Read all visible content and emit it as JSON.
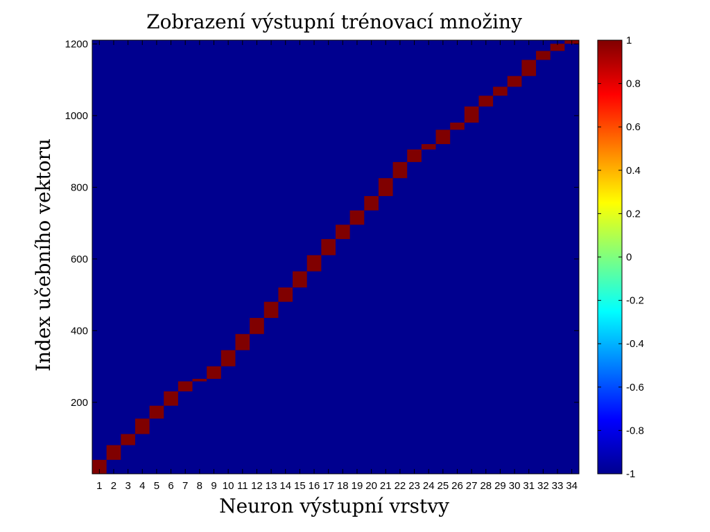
{
  "chart_data": {
    "type": "heatmap",
    "title": "Zobrazení výstupní trénovací množiny",
    "xlabel": "Neuron výstupní vrstvy",
    "ylabel": "Index učebního vektoru",
    "x_categories": [
      "1",
      "2",
      "3",
      "4",
      "5",
      "6",
      "7",
      "8",
      "9",
      "10",
      "11",
      "12",
      "13",
      "14",
      "15",
      "16",
      "17",
      "18",
      "19",
      "20",
      "21",
      "22",
      "23",
      "24",
      "25",
      "26",
      "27",
      "28",
      "29",
      "30",
      "31",
      "32",
      "33",
      "34"
    ],
    "ylim": [
      1,
      1210
    ],
    "y_ticks": [
      200,
      400,
      600,
      800,
      1000,
      1200
    ],
    "value_range": [
      -1,
      1
    ],
    "background_value": -1,
    "active_value": 1,
    "active_blocks": [
      {
        "neuron": 1,
        "rows": [
          1,
          39
        ]
      },
      {
        "neuron": 2,
        "rows": [
          40,
          80
        ]
      },
      {
        "neuron": 3,
        "rows": [
          81,
          111
        ]
      },
      {
        "neuron": 4,
        "rows": [
          112,
          154
        ]
      },
      {
        "neuron": 5,
        "rows": [
          155,
          190
        ]
      },
      {
        "neuron": 6,
        "rows": [
          191,
          230
        ]
      },
      {
        "neuron": 7,
        "rows": [
          231,
          258
        ]
      },
      {
        "neuron": 8,
        "rows": [
          259,
          265
        ]
      },
      {
        "neuron": 9,
        "rows": [
          266,
          300
        ]
      },
      {
        "neuron": 10,
        "rows": [
          301,
          345
        ]
      },
      {
        "neuron": 11,
        "rows": [
          346,
          390
        ]
      },
      {
        "neuron": 12,
        "rows": [
          391,
          435
        ]
      },
      {
        "neuron": 13,
        "rows": [
          436,
          480
        ]
      },
      {
        "neuron": 14,
        "rows": [
          481,
          520
        ]
      },
      {
        "neuron": 15,
        "rows": [
          521,
          565
        ]
      },
      {
        "neuron": 16,
        "rows": [
          566,
          610
        ]
      },
      {
        "neuron": 17,
        "rows": [
          611,
          655
        ]
      },
      {
        "neuron": 18,
        "rows": [
          656,
          695
        ]
      },
      {
        "neuron": 19,
        "rows": [
          696,
          735
        ]
      },
      {
        "neuron": 20,
        "rows": [
          736,
          775
        ]
      },
      {
        "neuron": 21,
        "rows": [
          776,
          825
        ]
      },
      {
        "neuron": 22,
        "rows": [
          826,
          870
        ]
      },
      {
        "neuron": 23,
        "rows": [
          871,
          905
        ]
      },
      {
        "neuron": 24,
        "rows": [
          906,
          920
        ]
      },
      {
        "neuron": 25,
        "rows": [
          921,
          960
        ]
      },
      {
        "neuron": 26,
        "rows": [
          961,
          980
        ]
      },
      {
        "neuron": 27,
        "rows": [
          981,
          1025
        ]
      },
      {
        "neuron": 28,
        "rows": [
          1026,
          1055
        ]
      },
      {
        "neuron": 29,
        "rows": [
          1056,
          1080
        ]
      },
      {
        "neuron": 30,
        "rows": [
          1081,
          1110
        ]
      },
      {
        "neuron": 31,
        "rows": [
          1111,
          1155
        ]
      },
      {
        "neuron": 32,
        "rows": [
          1156,
          1180
        ]
      },
      {
        "neuron": 33,
        "rows": [
          1181,
          1200
        ]
      },
      {
        "neuron": 34,
        "rows": [
          1201,
          1210
        ]
      }
    ],
    "grid": false,
    "colorbar": {
      "colormap": "jet",
      "placement": "right",
      "ticks": [
        "1",
        "0.8",
        "0.6",
        "0.4",
        "0.2",
        "0",
        "-0.2",
        "-0.4",
        "-0.6",
        "-0.8",
        "-1"
      ]
    },
    "colors": {
      "background": "#00008f",
      "active": "#800000"
    }
  }
}
